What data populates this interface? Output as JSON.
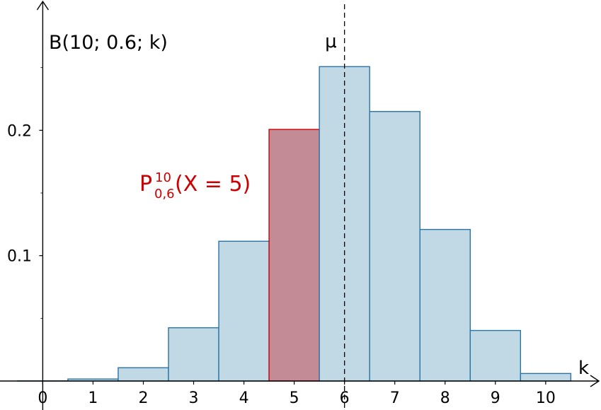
{
  "chart_data": {
    "type": "bar",
    "title": "B(10; 0.6; k)",
    "xlabel": "k",
    "ylabel": "",
    "x": [
      0,
      1,
      2,
      3,
      4,
      5,
      6,
      7,
      8,
      9,
      10
    ],
    "values": [
      0.0001,
      0.0016,
      0.0106,
      0.0425,
      0.1115,
      0.2007,
      0.2508,
      0.215,
      0.1209,
      0.0403,
      0.006
    ],
    "xlim": [
      -0.85,
      11.1
    ],
    "ylim": [
      0,
      0.3
    ],
    "x_tick_labels": [
      "0",
      "1",
      "2",
      "3",
      "4",
      "5",
      "6",
      "7",
      "8",
      "9",
      "10"
    ],
    "y_tick_values": [
      0.1,
      0.2
    ],
    "y_tick_labels": [
      "0.1",
      "0.2"
    ],
    "highlight": {
      "k": 5,
      "label_main": "P",
      "label_sup": "10",
      "label_sub": "0,6",
      "label_rest": "(X = 5)",
      "color": "#cc0000"
    },
    "mean_line": {
      "x": 6,
      "label": "μ"
    },
    "colors": {
      "bar_fill": "#c0d9e5",
      "bar_stroke": "#2a73a6",
      "highlight_fill": "#c38b96",
      "highlight_stroke": "#cc0000",
      "axis": "#000000"
    },
    "grid": false
  }
}
